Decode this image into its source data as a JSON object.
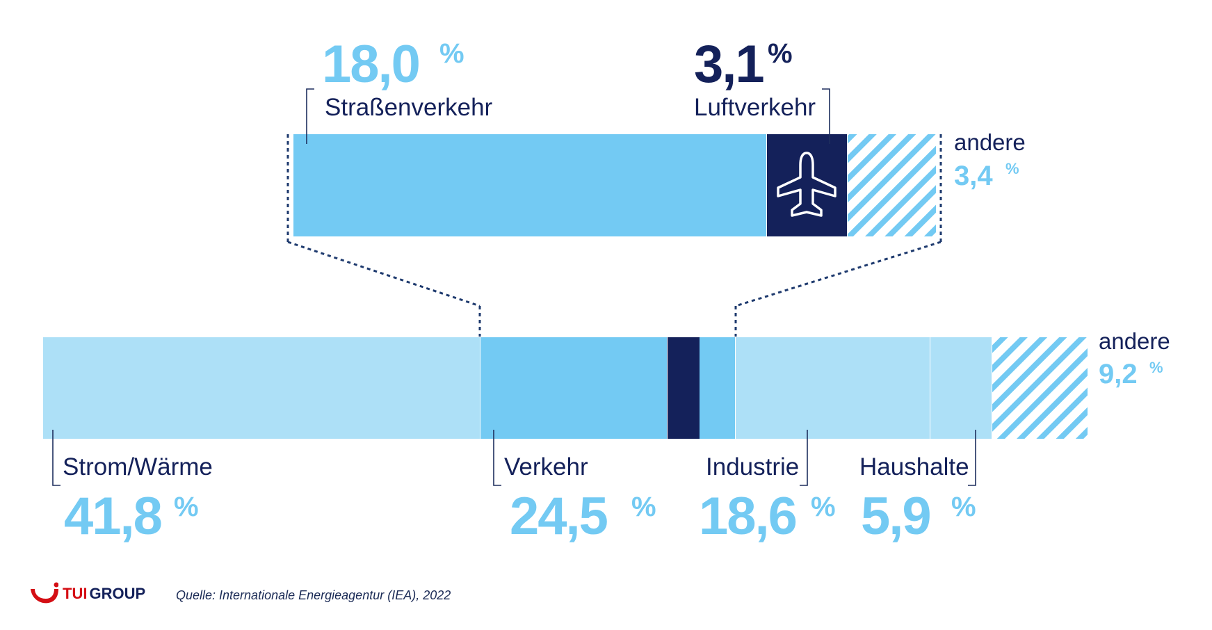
{
  "colors": {
    "light": "#ADE0F7",
    "mid": "#73CAF3",
    "dark": "#14215A",
    "accent_red": "#D40E14"
  },
  "icon": "airplane-icon",
  "chart_data": [
    {
      "type": "stacked-bar",
      "orientation": "horizontal",
      "segments": [
        {
          "name": "Strom/Wärme",
          "value": 41.8,
          "value_text": "41,8",
          "unit": "%"
        },
        {
          "name": "Verkehr",
          "value": 24.5,
          "value_text": "24,5",
          "unit": "%"
        },
        {
          "name": "Industrie",
          "value": 18.6,
          "value_text": "18,6",
          "unit": "%"
        },
        {
          "name": "Haushalte",
          "value": 5.9,
          "value_text": "5,9",
          "unit": "%"
        },
        {
          "name": "andere",
          "value": 9.2,
          "value_text": "9,2",
          "unit": "%"
        }
      ]
    },
    {
      "type": "stacked-bar",
      "orientation": "horizontal",
      "segments": [
        {
          "name": "Straßenverkehr",
          "value": 18.0,
          "value_text": "18,0",
          "unit": "%"
        },
        {
          "name": "Luftverkehr",
          "value": 3.1,
          "value_text": "3,1",
          "unit": "%"
        },
        {
          "name": "andere",
          "value": 3.4,
          "value_text": "3,4",
          "unit": "%"
        }
      ]
    }
  ],
  "logo": {
    "part1": "TUI",
    "part2": "GROUP"
  },
  "source": "Quelle: Internationale Energieagentur (IEA), 2022"
}
